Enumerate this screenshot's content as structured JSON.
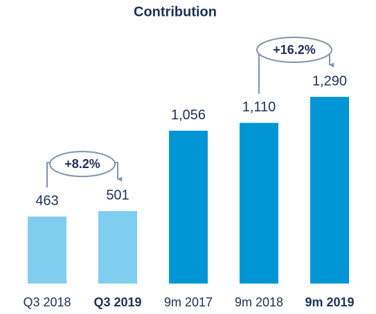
{
  "chart_data": {
    "type": "bar",
    "title": "Contribution",
    "categories": [
      "Q3 2018",
      "Q3 2019",
      "9m 2017",
      "9m 2018",
      "9m 2019"
    ],
    "values": [
      463,
      501,
      1056,
      1110,
      1290
    ],
    "value_labels": [
      "463",
      "501",
      "1,056",
      "1,110",
      "1,290"
    ],
    "colors": [
      "#7fcdef",
      "#7fcdef",
      "#0096d6",
      "#0096d6",
      "#0096d6"
    ],
    "annotations": [
      {
        "text": "+8.2%",
        "from": 0,
        "to": 1
      },
      {
        "text": "+16.2%",
        "from": 3,
        "to": 4
      }
    ]
  }
}
